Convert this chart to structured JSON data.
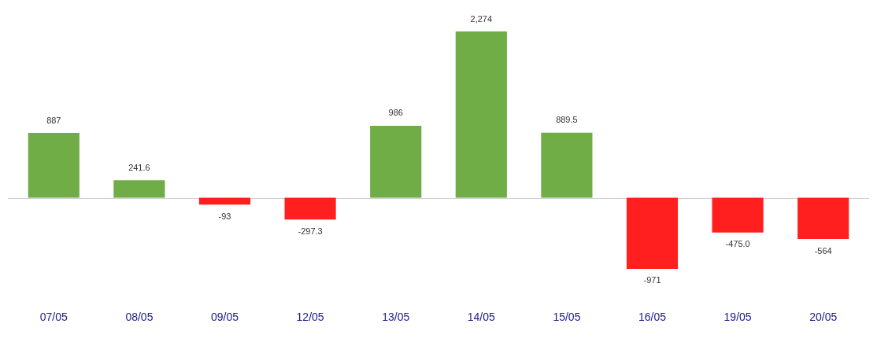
{
  "chart_data": {
    "type": "bar",
    "categories": [
      "07/05",
      "08/05",
      "09/05",
      "12/05",
      "13/05",
      "14/05",
      "15/05",
      "16/05",
      "19/05",
      "20/05"
    ],
    "values": [
      887,
      241.6,
      -93,
      -297.3,
      986,
      2274,
      889.5,
      -971,
      -475.0,
      -564
    ],
    "colors": [
      "#70ad47",
      "#70ad47",
      "#ff1f1f",
      "#ff1f1f",
      "#70ad47",
      "#70ad47",
      "#70ad47",
      "#ff1f1f",
      "#ff1f1f",
      "#ff1f1f"
    ],
    "value_labels": [
      "887",
      "241.6",
      "-93",
      "-297.3",
      "986",
      "2,274",
      "889.5",
      "-971",
      "-475.0",
      "-564"
    ]
  }
}
